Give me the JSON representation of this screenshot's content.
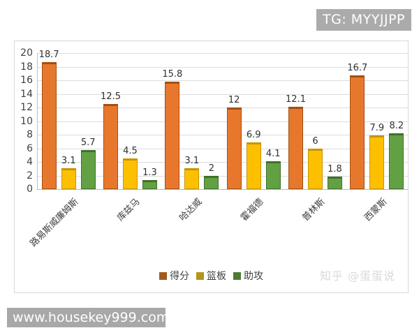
{
  "overlay": {
    "tg_badge": "TG: MYYJJPP",
    "watermark": "知乎 @蛋蛋说",
    "website": "www.housekey999.com"
  },
  "chart_data": {
    "type": "bar",
    "title": "",
    "xlabel": "",
    "ylabel": "",
    "categories": [
      "路易斯威廉姆斯",
      "库兹马",
      "哈达威",
      "霍福德",
      "普林斯",
      "西蒙斯"
    ],
    "series": [
      {
        "name": "得分",
        "values": [
          18.7,
          12.5,
          15.8,
          12,
          12.1,
          16.7
        ],
        "color": "#e8772e",
        "edge_color": "#a34f11",
        "legend_color": "#a05a20"
      },
      {
        "name": "篮板",
        "values": [
          3.1,
          4.5,
          3.1,
          6.9,
          6,
          7.9
        ],
        "color": "#fdc001",
        "edge_color": "#c79400",
        "legend_color": "#b3941c"
      },
      {
        "name": "助攻",
        "values": [
          5.7,
          1.3,
          2,
          4.1,
          1.8,
          8.2
        ],
        "color": "#61a144",
        "edge_color": "#41702a",
        "legend_color": "#4f7a33"
      }
    ],
    "ylim": [
      0,
      20
    ],
    "ytick_step": 2,
    "grid": true,
    "legend_position": "bottom",
    "data_labels": true
  }
}
